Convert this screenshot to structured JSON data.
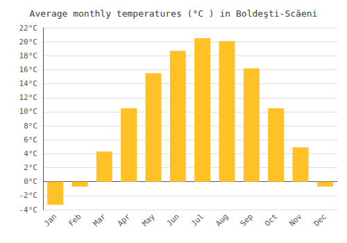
{
  "chart_data": {
    "type": "bar",
    "title": "Average monthly temperatures (°C ) in Boldeşti-Scăeni",
    "categories": [
      "Jan",
      "Feb",
      "Mar",
      "Apr",
      "May",
      "Jun",
      "Jul",
      "Aug",
      "Sep",
      "Oct",
      "Nov",
      "Dec"
    ],
    "values": [
      -3.3,
      -0.7,
      4.3,
      10.5,
      15.5,
      18.7,
      20.5,
      20.1,
      16.2,
      10.5,
      4.9,
      -0.7
    ],
    "color": "#FFC125",
    "ylim": [
      -4,
      22
    ],
    "yticks": [
      {
        "value": -4,
        "label": "-4°C"
      },
      {
        "value": -2,
        "label": "-2°C"
      },
      {
        "value": 0,
        "label": "0°C"
      },
      {
        "value": 2,
        "label": "2°C"
      },
      {
        "value": 4,
        "label": "4°C"
      },
      {
        "value": 6,
        "label": "6°C"
      },
      {
        "value": 8,
        "label": "8°C"
      },
      {
        "value": 10,
        "label": "10°C"
      },
      {
        "value": 12,
        "label": "12°C"
      },
      {
        "value": 14,
        "label": "14°C"
      },
      {
        "value": 16,
        "label": "16°C"
      },
      {
        "value": 18,
        "label": "18°C"
      },
      {
        "value": 20,
        "label": "20°C"
      },
      {
        "value": 22,
        "label": "22°C"
      }
    ],
    "grid": true
  }
}
